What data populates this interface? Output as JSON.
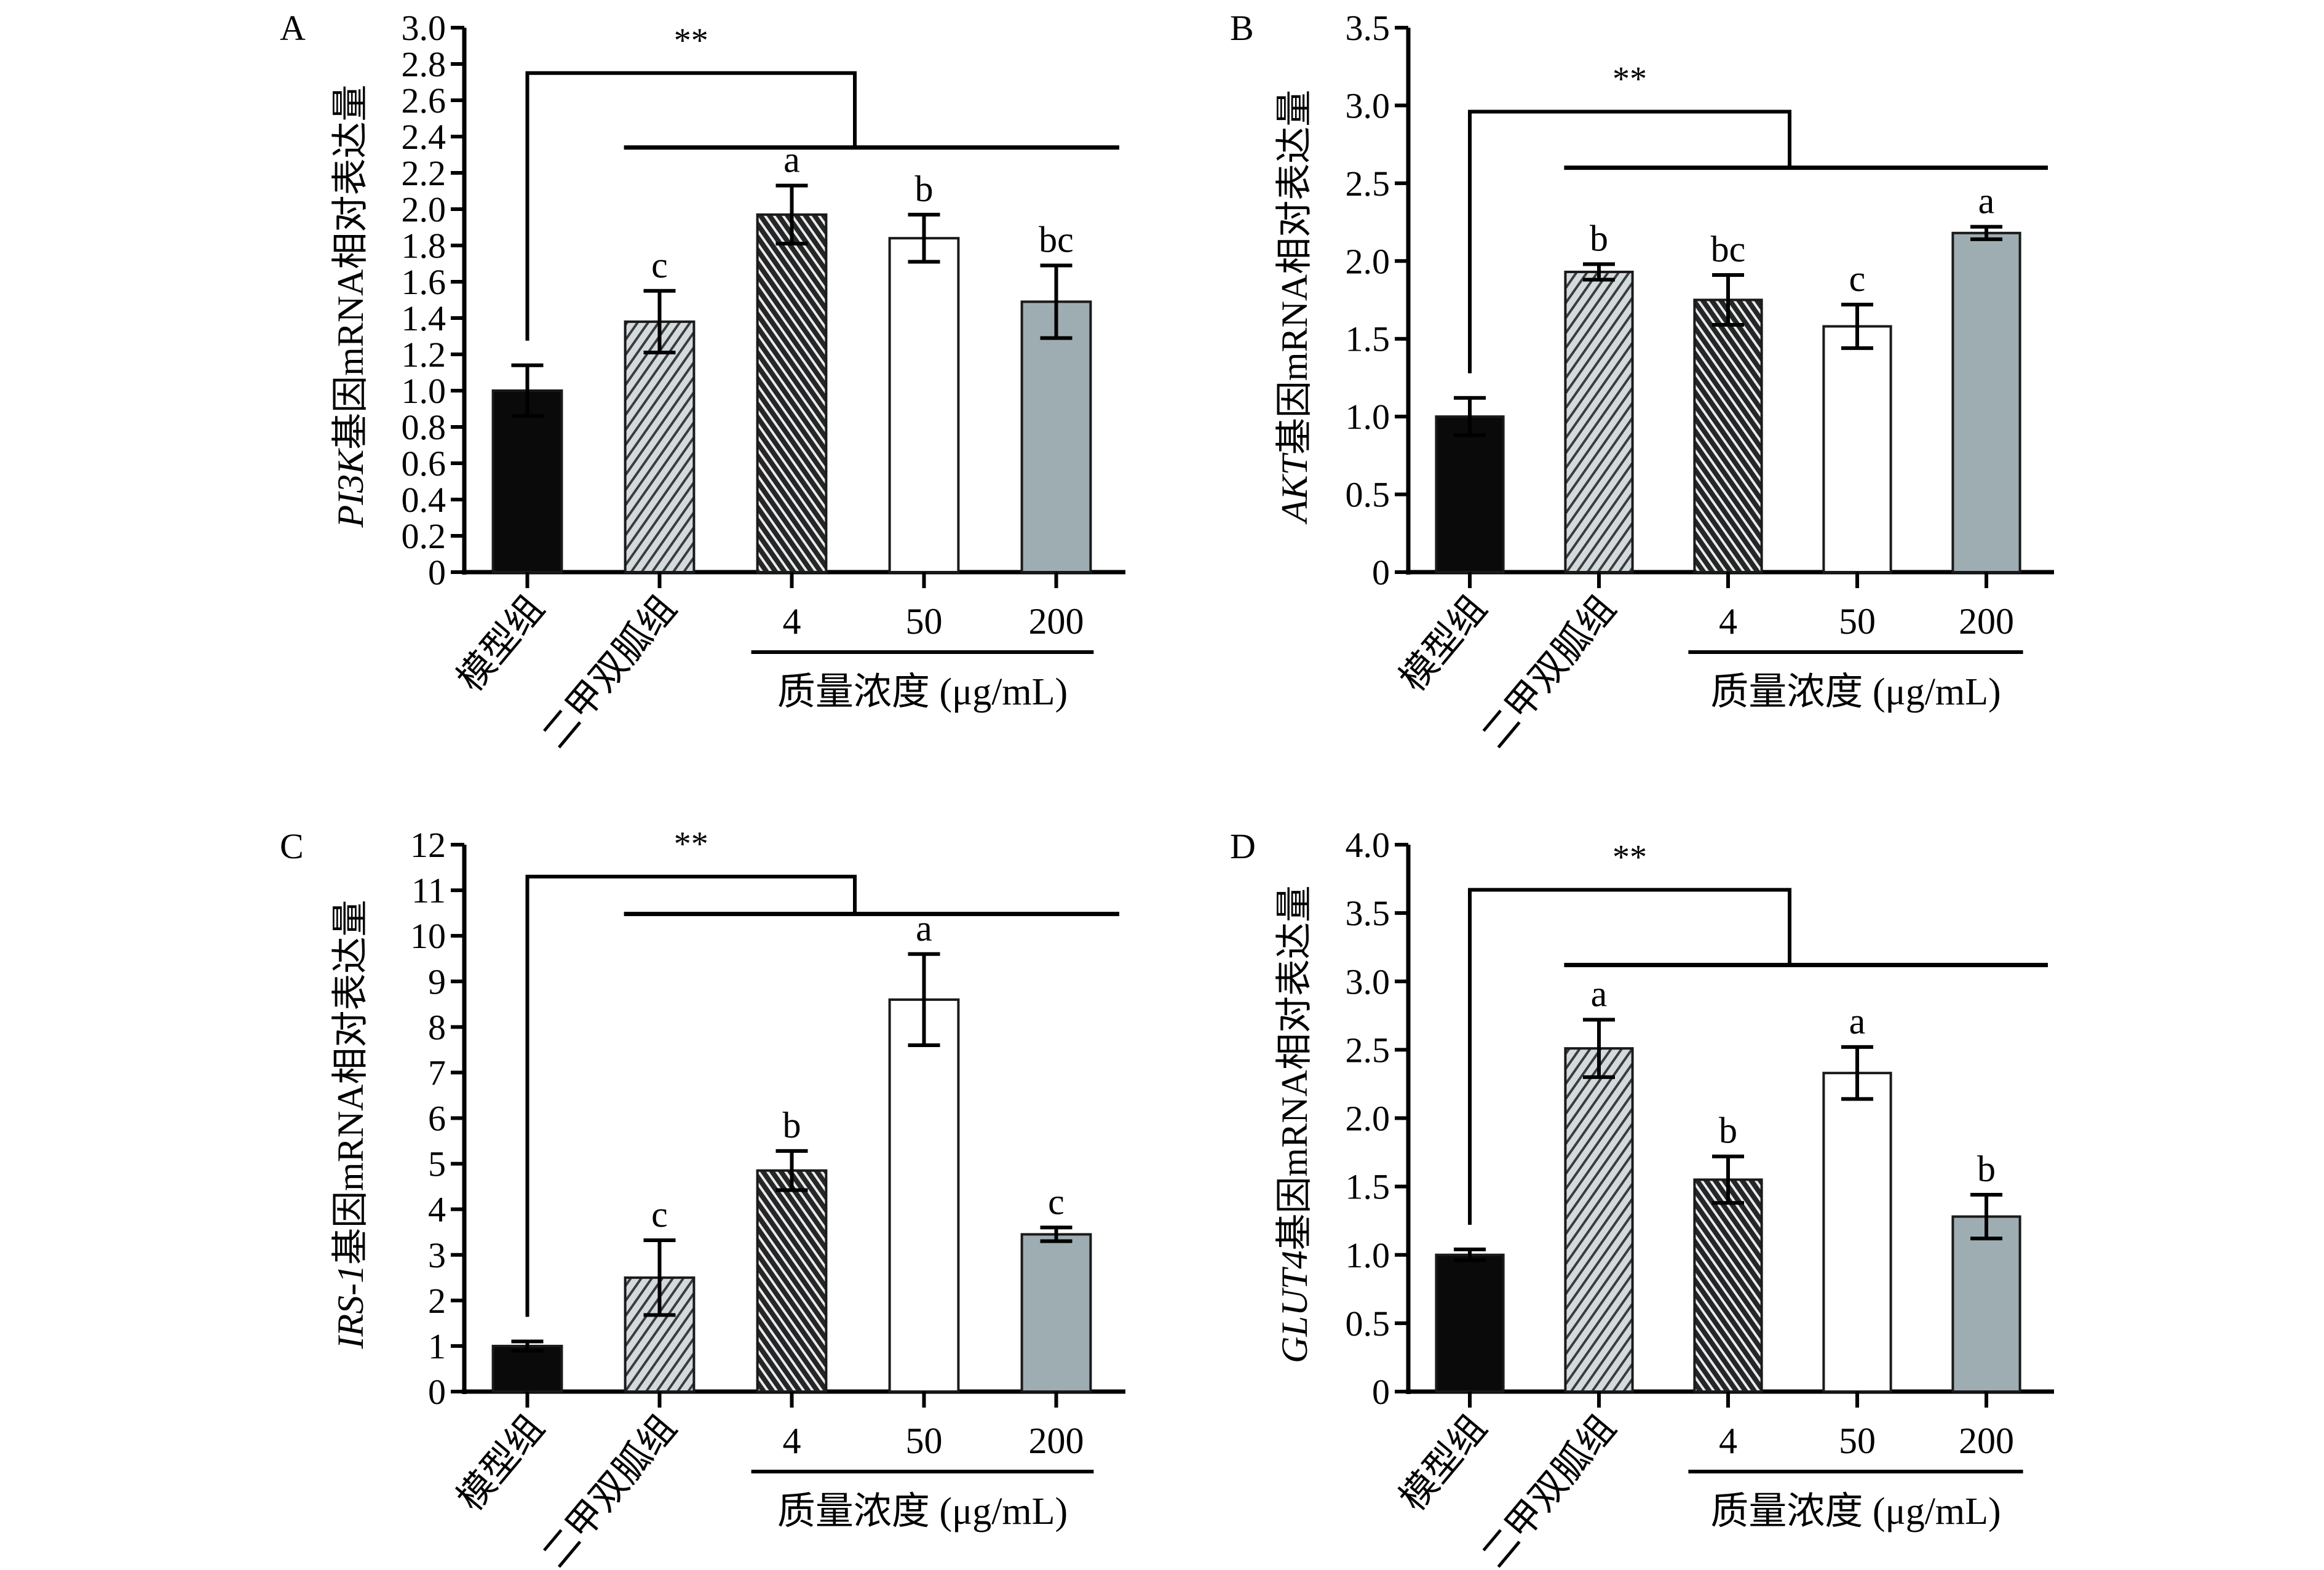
{
  "chart_data": [
    {
      "panel": "A",
      "type": "bar",
      "ylabel_gene": "PI3K",
      "ylabel_suffix": "基因mRNA相对表达量",
      "ylim": [
        0,
        3.0
      ],
      "yticks": [
        "0",
        "0.2",
        "0.4",
        "0.6",
        "0.8",
        "1.0",
        "1.2",
        "1.4",
        "1.6",
        "1.8",
        "2.0",
        "2.2",
        "2.4",
        "2.6",
        "2.8",
        "3.0"
      ],
      "ytick_values": [
        0,
        0.2,
        0.4,
        0.6,
        0.8,
        1.0,
        1.2,
        1.4,
        1.6,
        1.8,
        2.0,
        2.2,
        2.4,
        2.6,
        2.8,
        3.0
      ],
      "categories": [
        "模型组",
        "二甲双胍组",
        "4",
        "50",
        "200"
      ],
      "values": [
        1.0,
        1.38,
        1.97,
        1.84,
        1.49
      ],
      "errors": [
        0.14,
        0.17,
        0.16,
        0.13,
        0.2
      ],
      "letters": [
        "",
        "c",
        "a",
        "b",
        "bc"
      ],
      "significance": {
        "label": "**",
        "bracket_high": 2.75,
        "bracket_low": 2.34
      }
    },
    {
      "panel": "B",
      "type": "bar",
      "ylabel_gene": "AKT",
      "ylabel_suffix": "基因mRNA相对表达量",
      "ylim": [
        0,
        3.5
      ],
      "yticks": [
        "0",
        "0.5",
        "1.0",
        "1.5",
        "2.0",
        "2.5",
        "3.0",
        "3.5"
      ],
      "ytick_values": [
        0,
        0.5,
        1.0,
        1.5,
        2.0,
        2.5,
        3.0,
        3.5
      ],
      "categories": [
        "模型组",
        "二甲双胍组",
        "4",
        "50",
        "200"
      ],
      "values": [
        1.0,
        1.93,
        1.75,
        1.58,
        2.18
      ],
      "errors": [
        0.12,
        0.05,
        0.16,
        0.14,
        0.04
      ],
      "letters": [
        "",
        "b",
        "bc",
        "c",
        "a"
      ],
      "significance": {
        "label": "**",
        "bracket_high": 2.96,
        "bracket_low": 2.6
      }
    },
    {
      "panel": "C",
      "type": "bar",
      "ylabel_gene": "IRS-1",
      "ylabel_suffix": "基因mRNA相对表达量",
      "ylim": [
        0,
        12
      ],
      "yticks": [
        "0",
        "1",
        "2",
        "3",
        "4",
        "5",
        "6",
        "7",
        "8",
        "9",
        "10",
        "11",
        "12"
      ],
      "ytick_values": [
        0,
        1,
        2,
        3,
        4,
        5,
        6,
        7,
        8,
        9,
        10,
        11,
        12
      ],
      "categories": [
        "模型组",
        "二甲双胍组",
        "4",
        "50",
        "200"
      ],
      "values": [
        1.0,
        2.5,
        4.85,
        8.6,
        3.45
      ],
      "errors": [
        0.1,
        0.82,
        0.43,
        1.0,
        0.15
      ],
      "letters": [
        "",
        "c",
        "b",
        "a",
        "c"
      ],
      "significance": {
        "label": "**",
        "bracket_high": 11.3,
        "bracket_low": 10.48
      }
    },
    {
      "panel": "D",
      "type": "bar",
      "ylabel_gene": "GLUT4",
      "ylabel_suffix": "基因mRNA相对表达量",
      "ylim": [
        0,
        4.0
      ],
      "yticks": [
        "0",
        "0.5",
        "1.0",
        "1.5",
        "2.0",
        "2.5",
        "3.0",
        "3.5",
        "4.0"
      ],
      "ytick_values": [
        0,
        0.5,
        1.0,
        1.5,
        2.0,
        2.5,
        3.0,
        3.5,
        4.0
      ],
      "categories": [
        "模型组",
        "二甲双胍组",
        "4",
        "50",
        "200"
      ],
      "values": [
        1.0,
        2.51,
        1.55,
        2.33,
        1.28
      ],
      "errors": [
        0.04,
        0.21,
        0.17,
        0.19,
        0.16
      ],
      "letters": [
        "",
        "a",
        "b",
        "a",
        "b"
      ],
      "significance": {
        "label": "**",
        "bracket_high": 3.67,
        "bracket_low": 3.12
      }
    }
  ],
  "shared": {
    "group_label": "质量浓度 (μg/mL)",
    "bar_styles": [
      {
        "name": "模型组",
        "fill": "#0a0a0a",
        "pattern": "none"
      },
      {
        "name": "二甲双胍组",
        "fill": "#c8d0d4",
        "pattern": "hatch-light"
      },
      {
        "name": "4",
        "fill": "#2c2c2c",
        "pattern": "hatch-dark"
      },
      {
        "name": "50",
        "fill": "#ffffff",
        "pattern": "none"
      },
      {
        "name": "200",
        "fill": "#9eadb1",
        "pattern": "none"
      }
    ]
  }
}
